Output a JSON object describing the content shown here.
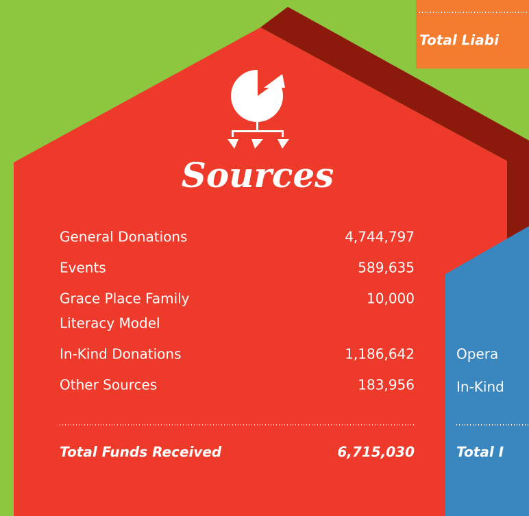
{
  "title": "Sources",
  "rows": [
    {
      "label": [
        "General Donations"
      ],
      "amount": "4,744,797"
    },
    {
      "label": [
        "Events"
      ],
      "amount": "589,635"
    },
    {
      "label": [
        "Grace Place Family",
        "Literacy Model"
      ],
      "amount": "10,000"
    },
    {
      "label": [
        "In-Kind Donations"
      ],
      "amount": "1,186,642"
    },
    {
      "label": [
        "Other Sources"
      ],
      "amount": "183,956"
    }
  ],
  "total": {
    "label": "Total Funds Received",
    "amount": "6,715,030"
  },
  "orange_total": "Total Liabi",
  "blue_rows": [
    "Opera",
    "In-Kind"
  ],
  "blue_total": "Total I"
}
